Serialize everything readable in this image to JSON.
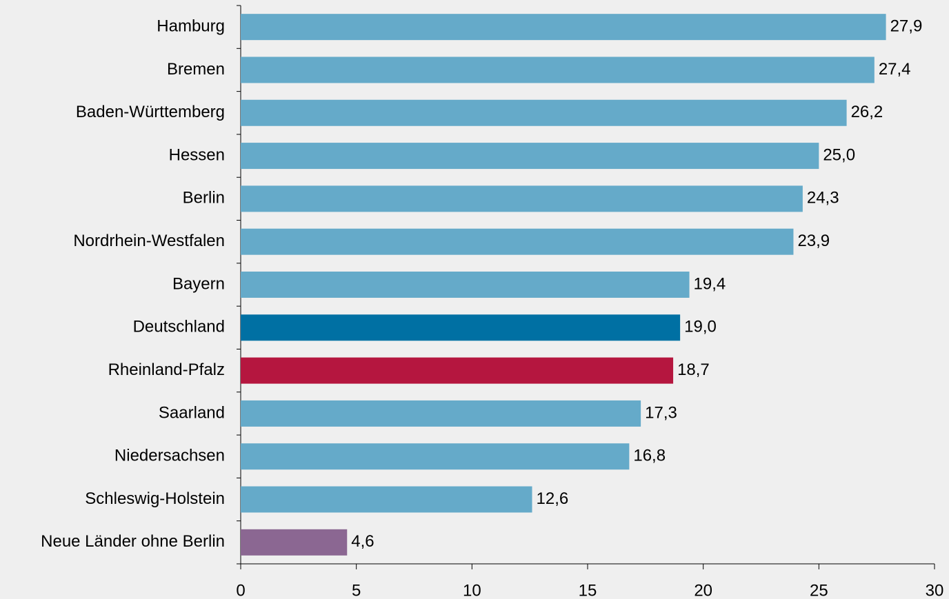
{
  "chart_data": {
    "type": "barh",
    "categories": [
      "Hamburg",
      "Bremen",
      "Baden-Württemberg",
      "Hessen",
      "Berlin",
      "Nordrhein-Westfalen",
      "Bayern",
      "Deutschland",
      "Rheinland-Pfalz",
      "Saarland",
      "Niedersachsen",
      "Schleswig-Holstein",
      "Neue Länder ohne Berlin"
    ],
    "values": [
      27.9,
      27.4,
      26.2,
      25.0,
      24.3,
      23.9,
      19.4,
      19.0,
      18.7,
      17.3,
      16.8,
      12.6,
      4.6
    ],
    "value_labels": [
      "27,9",
      "27,4",
      "26,2",
      "25,0",
      "24,3",
      "23,9",
      "19,4",
      "19,0",
      "18,7",
      "17,3",
      "16,8",
      "12,6",
      "4,6"
    ],
    "colors": [
      "#65aac9",
      "#65aac9",
      "#65aac9",
      "#65aac9",
      "#65aac9",
      "#65aac9",
      "#65aac9",
      "#0070a3",
      "#b5163f",
      "#65aac9",
      "#65aac9",
      "#65aac9",
      "#8b6792"
    ],
    "xlim": [
      0,
      30
    ],
    "xticks": [
      0,
      5,
      10,
      15,
      20,
      25,
      30
    ]
  }
}
